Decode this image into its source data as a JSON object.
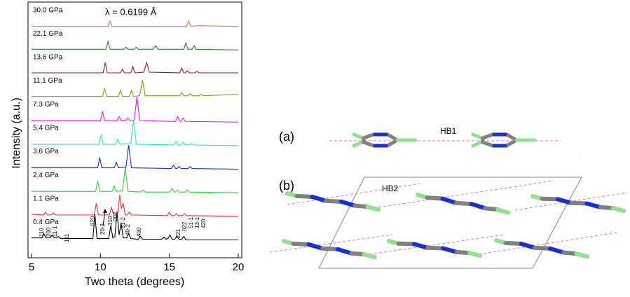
{
  "chart_data": {
    "type": "line",
    "xlabel": "Two theta (degrees)",
    "ylabel": "Intensity (a.u.)",
    "annotation": "λ = 0.6199 Å",
    "xlim": [
      5,
      20
    ],
    "xticks": [
      5,
      10,
      15,
      20
    ],
    "ylim": [
      0,
      370
    ],
    "peak_labels": [
      "110",
      "200",
      "11-1",
      "111",
      "020",
      "20-2",
      "310",
      "002",
      "31-2",
      "40-2",
      "400",
      "221",
      "022",
      "51-1",
      "13-1",
      "420"
    ],
    "series": [
      {
        "name": "0.4 GPa",
        "color": "#000000",
        "x": [
          5,
          5.75,
          5.9,
          6.05,
          6.35,
          6.5,
          6.65,
          6.8,
          6.95,
          7.1,
          9.45,
          9.6,
          9.75,
          10.6,
          10.75,
          10.9,
          11.05,
          11.2,
          11.35,
          11.5,
          11.65,
          11.9,
          12.05,
          12.2,
          12.75,
          12.9,
          13.05,
          14.45,
          14.6,
          14.75,
          14.9,
          15.05,
          15.2,
          15.4,
          15.55,
          15.7,
          15.9,
          16.05,
          16.2,
          20
        ],
        "values": [
          4,
          4,
          10,
          4,
          4,
          8,
          4,
          4,
          6,
          3,
          3,
          38,
          3,
          3,
          22,
          4,
          6,
          42,
          8,
          26,
          4,
          4,
          10,
          3,
          2,
          6,
          2,
          2,
          5,
          2,
          3,
          8,
          2,
          2,
          6,
          2,
          2,
          6,
          1,
          1
        ]
      },
      {
        "name": "1.1 GPa",
        "color": "#e03030",
        "x": [
          5,
          5.85,
          6.0,
          6.15,
          6.45,
          6.6,
          6.75,
          9.55,
          9.7,
          9.85,
          10.65,
          10.8,
          10.95,
          11.25,
          11.4,
          11.52,
          11.65,
          11.8,
          11.95,
          12.1,
          12.25,
          14.85,
          15.0,
          15.15,
          15.35,
          15.5,
          15.65,
          15.95,
          16.1,
          16.25,
          20
        ],
        "values": [
          4,
          3,
          7,
          3,
          3,
          6,
          3,
          3,
          20,
          3,
          3,
          14,
          4,
          5,
          32,
          12,
          20,
          3,
          3,
          7,
          3,
          2,
          7,
          2,
          2,
          5,
          2,
          2,
          5,
          2,
          1
        ]
      },
      {
        "name": "2.4 GPa",
        "color": "#30d030",
        "x": [
          5,
          9.65,
          9.8,
          9.95,
          10.85,
          11.0,
          11.15,
          11.6,
          11.8,
          12.0,
          12.95,
          13.1,
          13.25,
          15.05,
          15.2,
          15.35,
          15.45,
          15.6,
          15.75,
          16.15,
          16.3,
          16.45,
          20
        ],
        "values": [
          3,
          3,
          18,
          3,
          3,
          11,
          3,
          4,
          38,
          3,
          2,
          5,
          2,
          2,
          7,
          2,
          2,
          5,
          2,
          2,
          5,
          2,
          1
        ]
      },
      {
        "name": "3.6 GPa",
        "color": "#2030c0",
        "x": [
          5,
          9.8,
          9.95,
          10.1,
          11.0,
          11.15,
          11.3,
          11.85,
          12.05,
          12.25,
          15.15,
          15.3,
          15.45,
          15.55,
          15.7,
          15.85,
          16.35,
          16.5,
          16.65,
          20
        ],
        "values": [
          3,
          3,
          18,
          3,
          3,
          11,
          3,
          4,
          36,
          3,
          2,
          7,
          2,
          2,
          5,
          2,
          2,
          5,
          2,
          1
        ]
      },
      {
        "name": "5.4 GPa",
        "color": "#20e0e0",
        "x": [
          5,
          9.9,
          10.05,
          10.2,
          11.1,
          11.25,
          11.4,
          12.2,
          12.4,
          12.6,
          15.35,
          15.5,
          15.65,
          15.85,
          16.0,
          16.15,
          16.45,
          16.6,
          16.75,
          20
        ],
        "values": [
          3,
          3,
          17,
          3,
          3,
          10,
          3,
          4,
          38,
          3,
          2,
          7,
          2,
          2,
          6,
          2,
          2,
          4,
          2,
          1
        ]
      },
      {
        "name": "7.3 GPa",
        "color": "#e020e0",
        "x": [
          5,
          10.0,
          10.15,
          10.3,
          11.2,
          11.35,
          11.5,
          11.85,
          12.0,
          12.15,
          12.45,
          12.65,
          12.85,
          15.45,
          15.6,
          15.75,
          15.85,
          16.0,
          16.15,
          20
        ],
        "values": [
          3,
          3,
          17,
          3,
          3,
          9,
          3,
          3,
          7,
          3,
          4,
          38,
          3,
          2,
          9,
          2,
          2,
          7,
          2,
          1
        ]
      },
      {
        "name": "11.1 GPa",
        "color": "#a09020",
        "x": [
          5,
          10.15,
          10.3,
          10.45,
          11.3,
          11.45,
          11.6,
          12.1,
          12.25,
          12.4,
          12.85,
          13.05,
          13.25,
          15.75,
          15.9,
          16.05,
          16.35,
          16.5,
          16.65,
          17.15,
          17.3,
          17.45,
          20
        ],
        "values": [
          4,
          4,
          16,
          4,
          4,
          13,
          4,
          4,
          13,
          4,
          5,
          28,
          5,
          5,
          10,
          5,
          5,
          8,
          5,
          5,
          7,
          5,
          7
        ]
      },
      {
        "name": "13.6 GPa",
        "color": "#901818",
        "x": [
          5,
          10.2,
          10.35,
          10.5,
          11.45,
          11.6,
          11.75,
          12.2,
          12.35,
          12.5,
          13.15,
          13.35,
          13.55,
          15.75,
          15.9,
          16.05,
          16.15,
          16.3,
          16.45,
          16.85,
          17.0,
          17.15,
          20
        ],
        "values": [
          4,
          4,
          19,
          4,
          4,
          9,
          4,
          4,
          13,
          4,
          5,
          19,
          5,
          4,
          11,
          4,
          4,
          7,
          4,
          4,
          6,
          4,
          4
        ]
      },
      {
        "name": "22.1 GPa",
        "color": "#208020",
        "x": [
          5,
          10.4,
          10.55,
          10.7,
          11.7,
          11.85,
          12.0,
          12.45,
          12.6,
          12.75,
          13.8,
          14.0,
          14.2,
          16.05,
          16.2,
          16.35,
          16.65,
          16.8,
          16.95,
          20
        ],
        "values": [
          4,
          4,
          15,
          4,
          4,
          7,
          4,
          4,
          7,
          4,
          4,
          9,
          4,
          4,
          13,
          4,
          4,
          9,
          4,
          3
        ]
      },
      {
        "name": "30.0 GPa",
        "color": "#f07060",
        "x": [
          5,
          10.55,
          10.7,
          10.85,
          16.25,
          16.4,
          16.55,
          17.0,
          20
        ],
        "values": [
          3,
          3,
          11,
          3,
          3,
          11,
          3,
          4,
          3
        ]
      }
    ]
  },
  "structure": {
    "panels": [
      {
        "label": "(a)",
        "bond": "HB1"
      },
      {
        "label": "(b)",
        "bond": "HB2"
      }
    ]
  }
}
